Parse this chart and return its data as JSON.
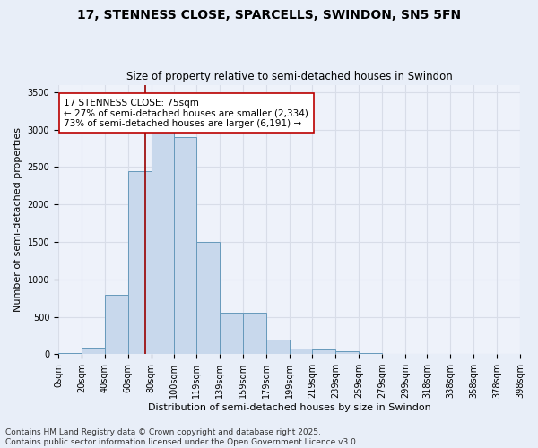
{
  "title_line1": "17, STENNESS CLOSE, SPARCELLS, SWINDON, SN5 5FN",
  "title_line2": "Size of property relative to semi-detached houses in Swindon",
  "xlabel": "Distribution of semi-detached houses by size in Swindon",
  "ylabel": "Number of semi-detached properties",
  "bin_labels": [
    "0sqm",
    "20sqm",
    "40sqm",
    "60sqm",
    "80sqm",
    "100sqm",
    "119sqm",
    "139sqm",
    "159sqm",
    "179sqm",
    "199sqm",
    "219sqm",
    "239sqm",
    "259sqm",
    "279sqm",
    "299sqm",
    "318sqm",
    "338sqm",
    "358sqm",
    "378sqm",
    "398sqm"
  ],
  "bin_edges": [
    0,
    20,
    40,
    60,
    80,
    100,
    119,
    139,
    159,
    179,
    199,
    219,
    239,
    259,
    279,
    299,
    318,
    338,
    358,
    378,
    398
  ],
  "bar_heights": [
    20,
    90,
    800,
    2450,
    3300,
    2900,
    1500,
    550,
    550,
    200,
    80,
    60,
    40,
    20,
    0,
    0,
    0,
    0,
    0,
    0
  ],
  "bar_color": "#c8d8ec",
  "bar_edge_color": "#6699bb",
  "property_size": 75,
  "property_line_color": "#990000",
  "annotation_text": "17 STENNESS CLOSE: 75sqm\n← 27% of semi-detached houses are smaller (2,334)\n73% of semi-detached houses are larger (6,191) →",
  "annotation_box_color": "#ffffff",
  "annotation_box_edge_color": "#bb0000",
  "ylim": [
    0,
    3600
  ],
  "yticks": [
    0,
    500,
    1000,
    1500,
    2000,
    2500,
    3000,
    3500
  ],
  "bg_color": "#e8eef8",
  "plot_bg_color": "#eef2fa",
  "grid_color": "#d8dde8",
  "footer_text": "Contains HM Land Registry data © Crown copyright and database right 2025.\nContains public sector information licensed under the Open Government Licence v3.0.",
  "title_fontsize": 10,
  "subtitle_fontsize": 8.5,
  "axis_label_fontsize": 8,
  "tick_fontsize": 7,
  "annotation_fontsize": 7.5,
  "footer_fontsize": 6.5
}
